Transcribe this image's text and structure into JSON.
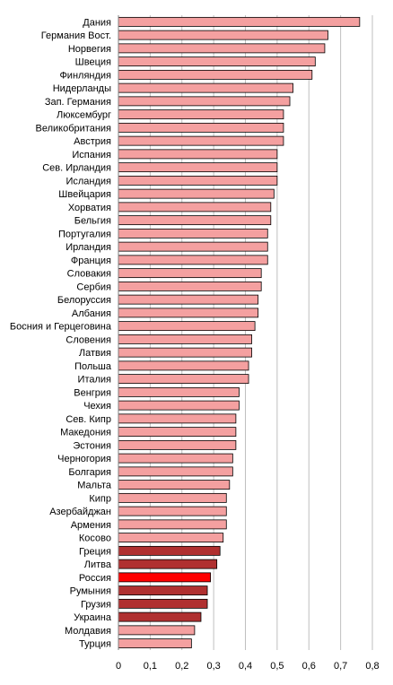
{
  "chart_data": {
    "type": "bar",
    "orientation": "horizontal",
    "title": "",
    "xlabel": "",
    "ylabel": "",
    "xlim": [
      0,
      0.8
    ],
    "grid": true,
    "legend": "none",
    "categories": [
      "Дания",
      "Германия Вост.",
      "Норвегия",
      "Швеция",
      "Финляндия",
      "Нидерланды",
      "Зап. Германия",
      "Люксембург",
      "Великобритания",
      "Австрия",
      "Испания",
      "Сев. Ирландия",
      "Исландия",
      "Швейцария",
      "Хорватия",
      "Бельгия",
      "Португалия",
      "Ирландия",
      "Франция",
      "Словакия",
      "Сербия",
      "Белоруссия",
      "Албания",
      "Босния и Герцеговина",
      "Словения",
      "Латвия",
      "Польша",
      "Италия",
      "Венгрия",
      "Чехия",
      "Сев. Кипр",
      "Македония",
      "Эстония",
      "Черногория",
      "Болгария",
      "Мальта",
      "Кипр",
      "Азербайджан",
      "Армения",
      "Косово",
      "Греция",
      "Литва",
      "Россия",
      "Румыния",
      "Грузия",
      "Украина",
      "Молдавия",
      "Турция"
    ],
    "values": [
      0.76,
      0.66,
      0.65,
      0.62,
      0.61,
      0.55,
      0.54,
      0.52,
      0.52,
      0.52,
      0.5,
      0.5,
      0.5,
      0.49,
      0.48,
      0.48,
      0.47,
      0.47,
      0.47,
      0.45,
      0.45,
      0.44,
      0.44,
      0.43,
      0.42,
      0.42,
      0.41,
      0.41,
      0.38,
      0.38,
      0.37,
      0.37,
      0.37,
      0.36,
      0.36,
      0.35,
      0.34,
      0.34,
      0.34,
      0.33,
      0.32,
      0.31,
      0.29,
      0.28,
      0.28,
      0.26,
      0.24,
      0.23
    ],
    "bar_colors": [
      "#f4a0a0",
      "#f4a0a0",
      "#f4a0a0",
      "#f4a0a0",
      "#f4a0a0",
      "#f4a0a0",
      "#f4a0a0",
      "#f4a0a0",
      "#f4a0a0",
      "#f4a0a0",
      "#f4a0a0",
      "#f4a0a0",
      "#f4a0a0",
      "#f4a0a0",
      "#f4a0a0",
      "#f4a0a0",
      "#f4a0a0",
      "#f4a0a0",
      "#f4a0a0",
      "#f4a0a0",
      "#f4a0a0",
      "#f4a0a0",
      "#f4a0a0",
      "#f4a0a0",
      "#f4a0a0",
      "#f4a0a0",
      "#f4a0a0",
      "#f4a0a0",
      "#f4a0a0",
      "#f4a0a0",
      "#f4a0a0",
      "#f4a0a0",
      "#f4a0a0",
      "#f4a0a0",
      "#f4a0a0",
      "#f4a0a0",
      "#f4a0a0",
      "#f4a0a0",
      "#f4a0a0",
      "#f4a0a0",
      "#b03030",
      "#b03030",
      "#ff0000",
      "#b03030",
      "#b03030",
      "#b03030",
      "#f4a0a0",
      "#f4a0a0"
    ],
    "x_ticks": [
      0,
      0.1,
      0.2,
      0.3,
      0.4,
      0.5,
      0.6,
      0.7,
      0.8
    ],
    "x_tick_labels": [
      "0",
      "0,1",
      "0,2",
      "0,3",
      "0,4",
      "0,5",
      "0,6",
      "0,7",
      "0,8"
    ]
  }
}
